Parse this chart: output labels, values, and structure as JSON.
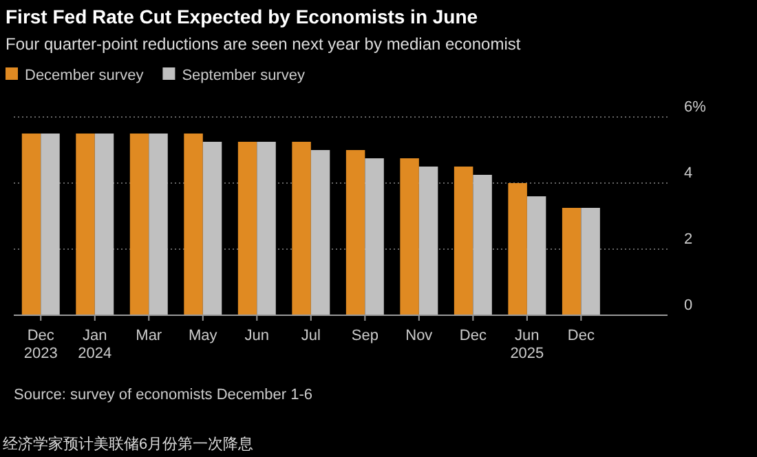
{
  "chart_data": {
    "type": "bar",
    "title": "First Fed Rate Cut Expected by Economists in June",
    "subtitle": "Four quarter-point reductions are seen next year by median economist",
    "categories": [
      "Dec\n2023",
      "Jan\n2024",
      "Mar",
      "May",
      "Jun",
      "Jul",
      "Sep",
      "Nov",
      "Dec",
      "Jun\n2025",
      "Dec"
    ],
    "series": [
      {
        "name": "December survey",
        "color": "#e08a22",
        "values": [
          5.5,
          5.5,
          5.5,
          5.5,
          5.25,
          5.25,
          5.0,
          4.75,
          4.5,
          4.0,
          3.25
        ]
      },
      {
        "name": "September survey",
        "color": "#c0c0c0",
        "values": [
          5.5,
          5.5,
          5.5,
          5.25,
          5.25,
          5.0,
          4.75,
          4.5,
          4.25,
          3.6,
          3.25
        ]
      }
    ],
    "ylim": [
      0,
      6
    ],
    "yticks": [
      0,
      2,
      4,
      {
        "value": 6,
        "label": "6%"
      }
    ],
    "grid": "y",
    "legend": "top left",
    "annotations": [
      "Source: survey of economists December 1-6",
      "经济学家预计美联储6月份第一次降息"
    ]
  }
}
